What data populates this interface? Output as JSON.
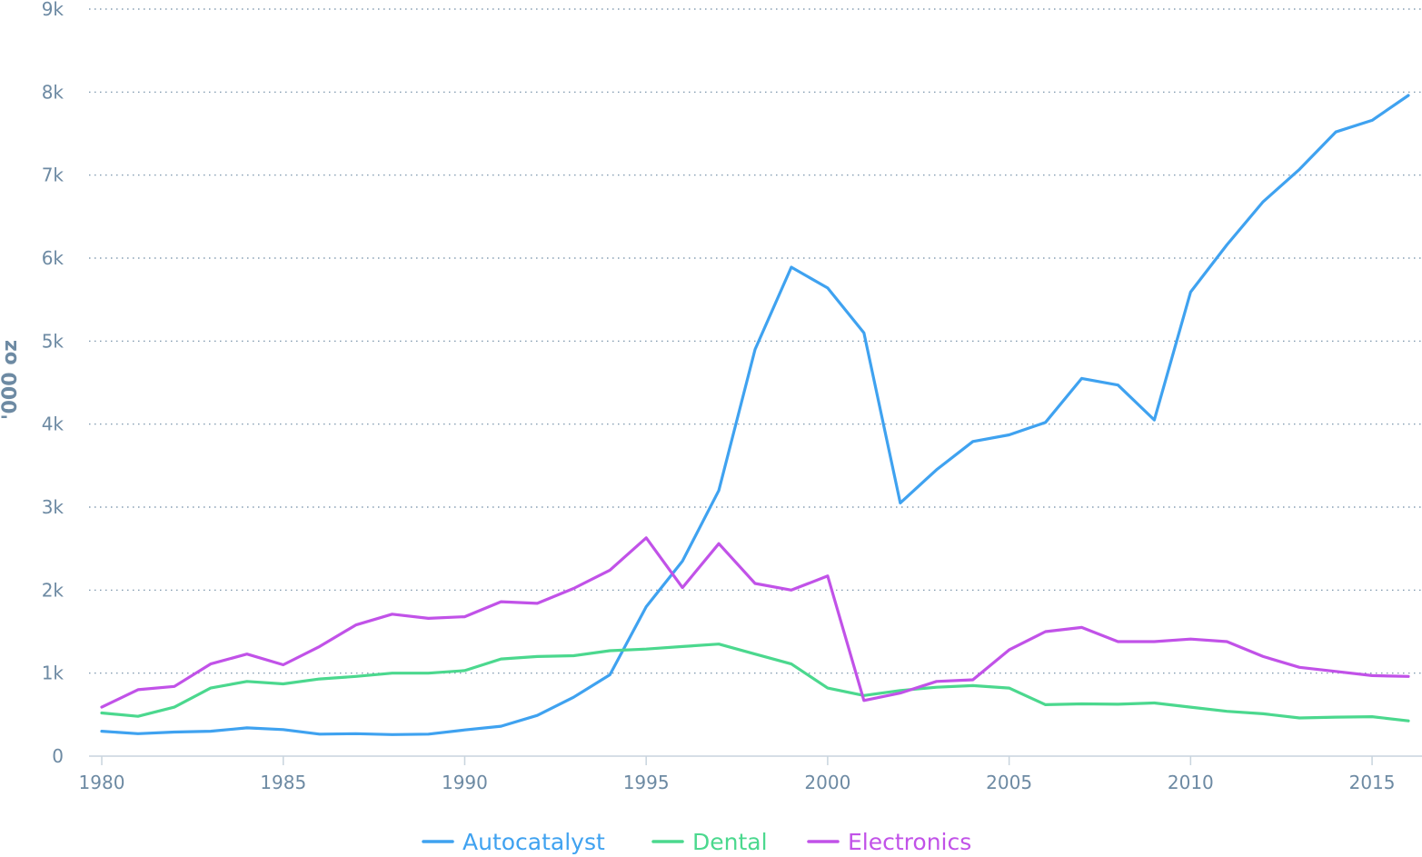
{
  "chart_data": {
    "type": "line",
    "ylabel": "'000 oz",
    "xlabel": "",
    "xlim": [
      1980,
      2016
    ],
    "ylim": [
      0,
      9000
    ],
    "x_ticks": [
      1980,
      1985,
      1990,
      1995,
      2000,
      2005,
      2010,
      2015
    ],
    "x_tick_labels": [
      "1980",
      "1985",
      "1990",
      "1995",
      "2000",
      "2005",
      "2010",
      "2015"
    ],
    "y_ticks": [
      0,
      1000,
      2000,
      3000,
      4000,
      5000,
      6000,
      7000,
      8000,
      9000
    ],
    "y_tick_labels": [
      "0",
      "1k",
      "2k",
      "3k",
      "4k",
      "5k",
      "6k",
      "7k",
      "8k",
      "9k"
    ],
    "grid": true,
    "legend_position": "bottom-center",
    "x": [
      1980,
      1981,
      1982,
      1983,
      1984,
      1985,
      1986,
      1987,
      1988,
      1989,
      1990,
      1991,
      1992,
      1993,
      1994,
      1995,
      1996,
      1997,
      1998,
      1999,
      2000,
      2001,
      2002,
      2003,
      2004,
      2005,
      2006,
      2007,
      2008,
      2009,
      2010,
      2011,
      2012,
      2013,
      2014,
      2015,
      2016
    ],
    "series": [
      {
        "name": "Autocatalyst",
        "color": "#3fa2f0",
        "values": [
          300,
          270,
          290,
          300,
          340,
          320,
          265,
          270,
          260,
          265,
          315,
          360,
          490,
          710,
          980,
          1800,
          2350,
          3200,
          4900,
          5890,
          5640,
          5100,
          3050,
          3450,
          3790,
          3870,
          4020,
          4550,
          4470,
          4050,
          5590,
          6160,
          6680,
          7070,
          7520,
          7660,
          7960
        ]
      },
      {
        "name": "Dental",
        "color": "#4bd88e",
        "values": [
          520,
          480,
          590,
          820,
          900,
          870,
          930,
          960,
          1000,
          1000,
          1030,
          1170,
          1200,
          1210,
          1270,
          1290,
          1320,
          1350,
          1230,
          1110,
          820,
          730,
          790,
          830,
          850,
          820,
          620,
          630,
          625,
          640,
          590,
          540,
          510,
          460,
          470,
          475,
          425
        ]
      },
      {
        "name": "Electronics",
        "color": "#c152e8",
        "values": [
          590,
          800,
          840,
          1110,
          1230,
          1100,
          1320,
          1580,
          1710,
          1660,
          1680,
          1860,
          1840,
          2020,
          2240,
          2630,
          2030,
          2560,
          2080,
          2000,
          2170,
          670,
          760,
          900,
          920,
          1280,
          1500,
          1550,
          1380,
          1380,
          1410,
          1380,
          1200,
          1070,
          1020,
          970,
          960
        ]
      }
    ]
  }
}
